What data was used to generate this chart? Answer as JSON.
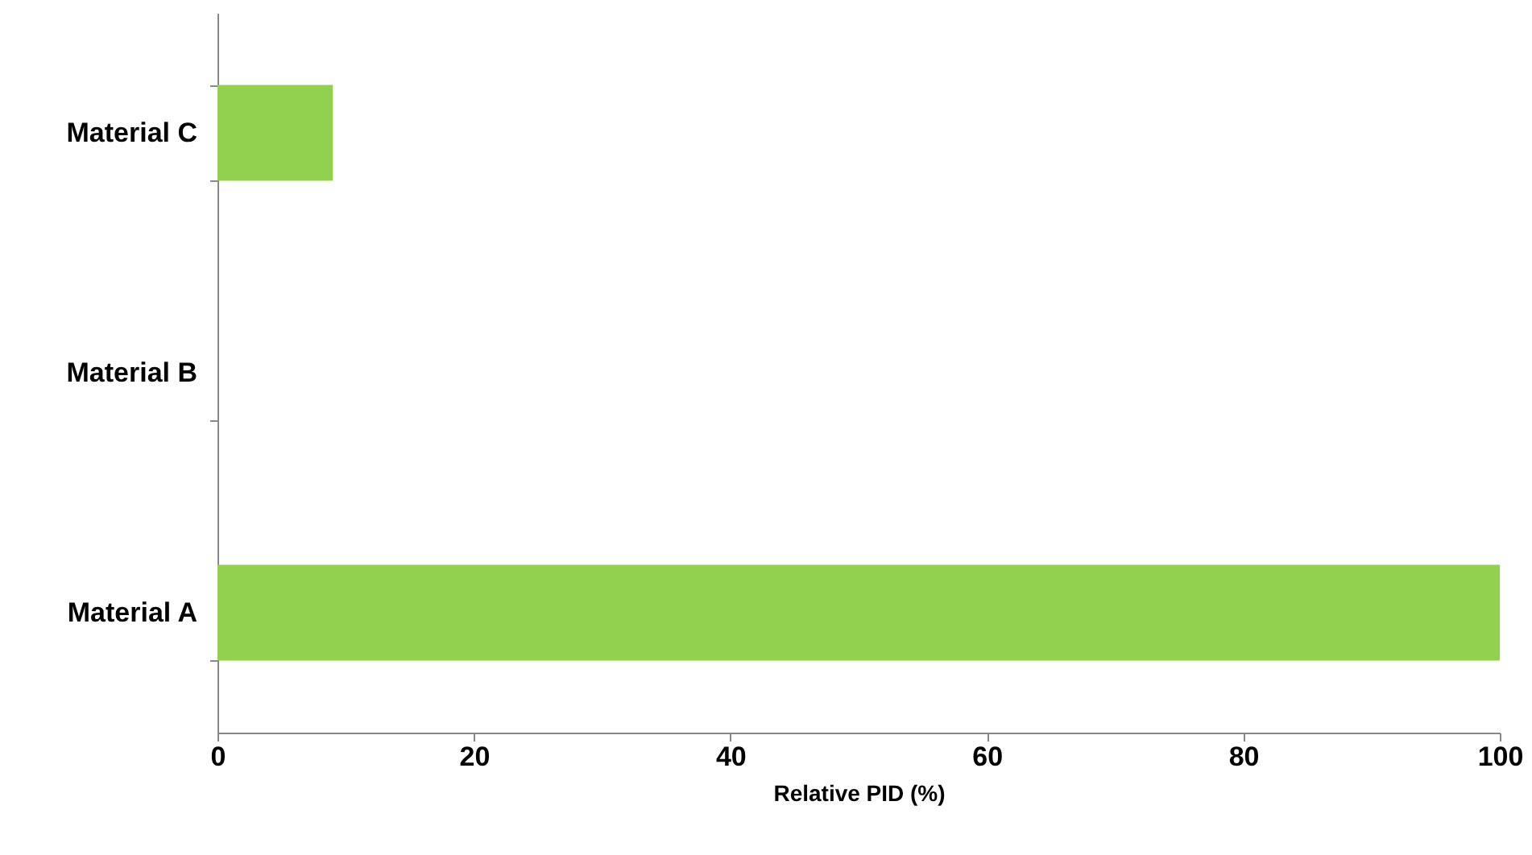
{
  "chart_data": {
    "type": "bar",
    "orientation": "horizontal",
    "xlabel": "Relative PID (%)",
    "categories": [
      "Material C",
      "Material B",
      "Material A"
    ],
    "values": [
      9,
      0,
      100
    ],
    "color": "#92d050",
    "xlim": [
      0,
      100
    ],
    "xticks": [
      0,
      20,
      40,
      60,
      80,
      100
    ]
  }
}
